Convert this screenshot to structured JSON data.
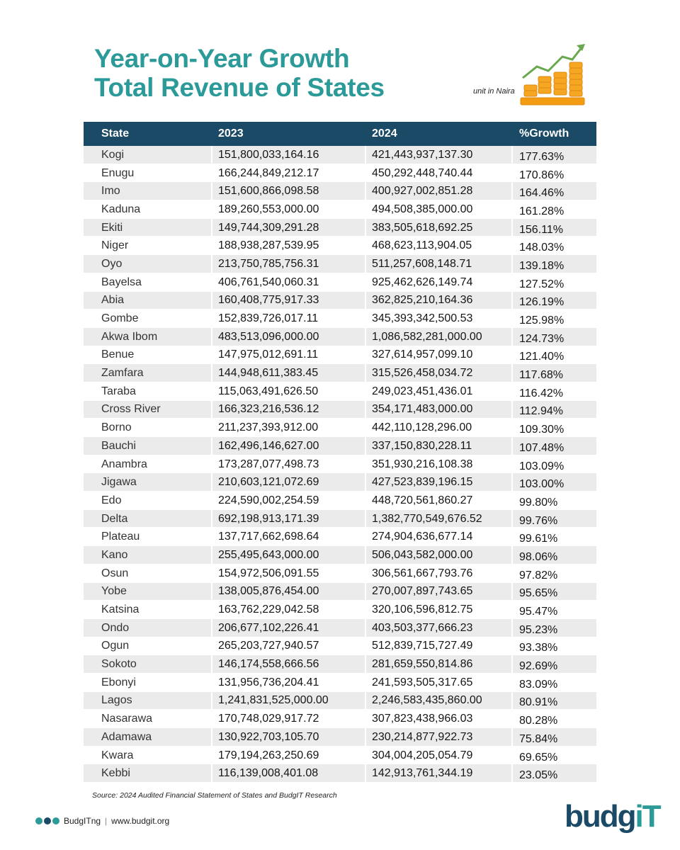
{
  "header": {
    "title_line1": "Year-on-Year Growth",
    "title_line2": "Total Revenue of States",
    "unit": "unit in Naira"
  },
  "table": {
    "columns": [
      "State",
      "2023",
      "2024",
      "%Growth"
    ],
    "rows": [
      [
        "Kogi",
        "151,800,033,164.16",
        "421,443,937,137.30",
        "177.63%"
      ],
      [
        "Enugu",
        "166,244,849,212.17",
        "450,292,448,740.44",
        "170.86%"
      ],
      [
        "Imo",
        "151,600,866,098.58",
        "400,927,002,851.28",
        "164.46%"
      ],
      [
        "Kaduna",
        "189,260,553,000.00",
        "494,508,385,000.00",
        "161.28%"
      ],
      [
        "Ekiti",
        "149,744,309,291.28",
        "383,505,618,692.25",
        "156.11%"
      ],
      [
        "Niger",
        "188,938,287,539.95",
        "468,623,113,904.05",
        "148.03%"
      ],
      [
        "Oyo",
        "213,750,785,756.31",
        "511,257,608,148.71",
        "139.18%"
      ],
      [
        "Bayelsa",
        "406,761,540,060.31",
        "925,462,626,149.74",
        "127.52%"
      ],
      [
        "Abia",
        "160,408,775,917.33",
        "362,825,210,164.36",
        "126.19%"
      ],
      [
        "Gombe",
        "152,839,726,017.11",
        "345,393,342,500.53",
        "125.98%"
      ],
      [
        "Akwa Ibom",
        "483,513,096,000.00",
        "1,086,582,281,000.00",
        "124.73%"
      ],
      [
        "Benue",
        "147,975,012,691.11",
        "327,614,957,099.10",
        "121.40%"
      ],
      [
        "Zamfara",
        "144,948,611,383.45",
        "315,526,458,034.72",
        "117.68%"
      ],
      [
        "Taraba",
        "115,063,491,626.50",
        "249,023,451,436.01",
        "116.42%"
      ],
      [
        "Cross River",
        "166,323,216,536.12",
        "354,171,483,000.00",
        "112.94%"
      ],
      [
        "Borno",
        "211,237,393,912.00",
        "442,110,128,296.00",
        "109.30%"
      ],
      [
        "Bauchi",
        "162,496,146,627.00",
        "337,150,830,228.11",
        "107.48%"
      ],
      [
        "Anambra",
        "173,287,077,498.73",
        "351,930,216,108.38",
        "103.09%"
      ],
      [
        "Jigawa",
        "210,603,121,072.69",
        "427,523,839,196.15",
        "103.00%"
      ],
      [
        "Edo",
        "224,590,002,254.59",
        "448,720,561,860.27",
        "99.80%"
      ],
      [
        "Delta",
        "692,198,913,171.39",
        "1,382,770,549,676.52",
        "99.76%"
      ],
      [
        "Plateau",
        "137,717,662,698.64",
        "274,904,636,677.14",
        "99.61%"
      ],
      [
        "Kano",
        "255,495,643,000.00",
        "506,043,582,000.00",
        "98.06%"
      ],
      [
        "Osun",
        "154,972,506,091.55",
        "306,561,667,793.76",
        "97.82%"
      ],
      [
        "Yobe",
        "138,005,876,454.00",
        "270,007,897,743.65",
        "95.65%"
      ],
      [
        "Katsina",
        "163,762,229,042.58",
        "320,106,596,812.75",
        "95.47%"
      ],
      [
        "Ondo",
        "206,677,102,226.41",
        "403,503,377,666.23",
        "95.23%"
      ],
      [
        "Ogun",
        "265,203,727,940.57",
        "512,839,715,727.49",
        "93.38%"
      ],
      [
        "Sokoto",
        "146,174,558,666.56",
        "281,659,550,814.86",
        "92.69%"
      ],
      [
        "Ebonyi",
        "131,956,736,204.41",
        "241,593,505,317.65",
        "83.09%"
      ],
      [
        "Lagos",
        "1,241,831,525,000.00",
        "2,246,583,435,860.00",
        "80.91%"
      ],
      [
        "Nasarawa",
        "170,748,029,917.72",
        "307,823,438,966.03",
        "80.28%"
      ],
      [
        "Adamawa",
        "130,922,703,105.70",
        "230,214,877,922.73",
        "75.84%"
      ],
      [
        "Kwara",
        "179,194,263,250.69",
        "304,004,205,054.79",
        "69.65%"
      ],
      [
        "Kebbi",
        "116,139,008,401.08",
        "142,913,761,344.19",
        "23.05%"
      ]
    ]
  },
  "source": "Source: 2024 Audited Financial Statement of States and BudgIT Research",
  "footer": {
    "handle": "BudgITng",
    "website": "www.budgit.org",
    "logo_main": "budg",
    "logo_accent": "iT"
  }
}
